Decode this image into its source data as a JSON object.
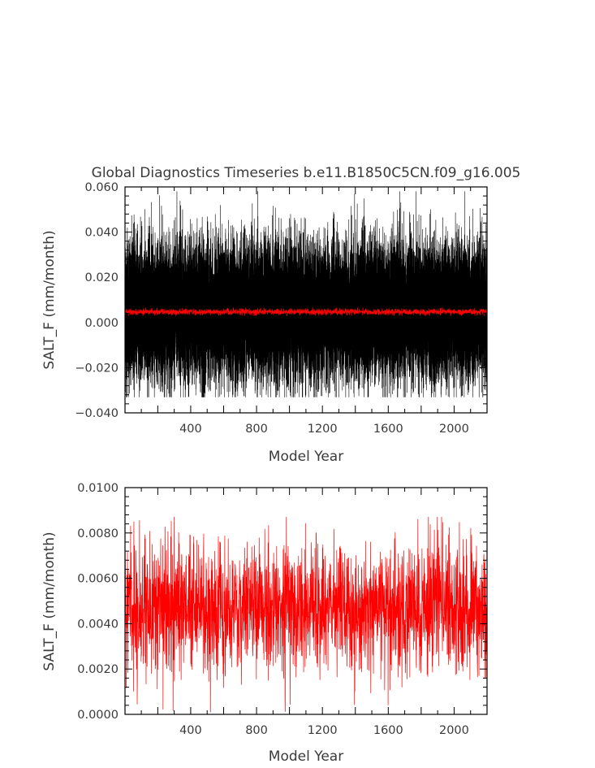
{
  "chart_data": [
    {
      "type": "line",
      "title": "Global Diagnostics Timeseries b.e11.B1850C5CN.f09_g16.005",
      "xlabel": "Model Year",
      "ylabel": "SALT_F (mm/month)",
      "xlim": [
        1,
        2200
      ],
      "ylim": [
        -0.04,
        0.06
      ],
      "xticks": [
        400,
        800,
        1200,
        1600,
        2000
      ],
      "xtick_labels": [
        "400",
        "800",
        "1200",
        "1600",
        "2000"
      ],
      "yticks": [
        -0.04,
        -0.02,
        0.0,
        0.02,
        0.04,
        0.06
      ],
      "ytick_labels": [
        "−0.040",
        "−0.020",
        "0.000",
        "0.020",
        "0.040",
        "0.060"
      ],
      "series": [
        {
          "kind": "monthly",
          "color": "#000000",
          "mean": 0.005,
          "envelope": [
            -0.029,
            0.045
          ],
          "extremes": [
            -0.033,
            0.058
          ]
        },
        {
          "kind": "annual",
          "color": "#ff0000",
          "mean": 0.0047,
          "envelope": [
            0.003,
            0.0065
          ]
        }
      ],
      "grid": false
    },
    {
      "type": "line",
      "title": "",
      "xlabel": "Model Year",
      "ylabel": "SALT_F (mm/month)",
      "xlim": [
        1,
        2200
      ],
      "ylim": [
        0.0,
        0.01
      ],
      "xticks": [
        400,
        800,
        1200,
        1600,
        2000
      ],
      "xtick_labels": [
        "400",
        "800",
        "1200",
        "1600",
        "2000"
      ],
      "yticks": [
        0.0,
        0.002,
        0.004,
        0.006,
        0.008,
        0.01
      ],
      "ytick_labels": [
        "0.0000",
        "0.0020",
        "0.0040",
        "0.0060",
        "0.0080",
        "0.0100"
      ],
      "series": [
        {
          "kind": "annual",
          "color": "#ff0000",
          "mean": 0.0047,
          "envelope": [
            0.0012,
            0.0087
          ],
          "extremes": [
            0.0001,
            0.0087
          ]
        }
      ],
      "grid": false
    }
  ]
}
